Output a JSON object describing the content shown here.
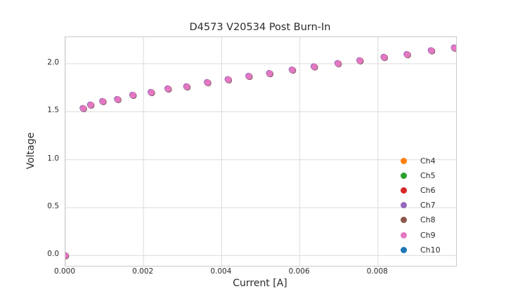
{
  "chart_data": {
    "type": "scatter",
    "title": "D4573 V20534 Post Burn-In",
    "xlabel": "Current [A]",
    "ylabel": "Voltage",
    "xlim": [
      0,
      0.01
    ],
    "ylim": [
      -0.106,
      2.277
    ],
    "grid": true,
    "legend_position": "lower right",
    "xticks": {
      "values": [
        0,
        0.002,
        0.004,
        0.006,
        0.008
      ],
      "labels": [
        "0.000",
        "0.002",
        "0.004",
        "0.006",
        "0.008"
      ]
    },
    "yticks": {
      "values": [
        0.0,
        0.5,
        1.0,
        1.5,
        2.0
      ],
      "labels": [
        "0.0",
        "0.5",
        "1.0",
        "1.5",
        "2.0"
      ]
    },
    "x": [
      0.0,
      0.00046,
      0.00065,
      0.00096,
      0.00134,
      0.00173,
      0.0022,
      0.00263,
      0.00311,
      0.00364,
      0.00417,
      0.0047,
      0.00523,
      0.00581,
      0.00637,
      0.00698,
      0.00754,
      0.00816,
      0.00875,
      0.00937,
      0.00996
    ],
    "y": [
      0.0,
      1.533,
      1.569,
      1.606,
      1.627,
      1.671,
      1.7,
      1.737,
      1.759,
      1.803,
      1.833,
      1.868,
      1.897,
      1.934,
      1.967,
      2.001,
      2.031,
      2.066,
      2.095,
      2.135,
      2.163
    ],
    "series": [
      {
        "name": "Ch4",
        "color": "#ff7f0e"
      },
      {
        "name": "Ch5",
        "color": "#2ca02c"
      },
      {
        "name": "Ch6",
        "color": "#d62728"
      },
      {
        "name": "Ch7",
        "color": "#9467bd"
      },
      {
        "name": "Ch8",
        "color": "#8c564b"
      },
      {
        "name": "Ch9",
        "color": "#e377c2"
      },
      {
        "name": "Ch10",
        "color": "#1f77b4"
      }
    ],
    "series_overlap": true,
    "top_series": "Ch9",
    "grid_color": "#dcdcdc",
    "spine_color": "#cbcbcb",
    "marker_radius_px": 4.5
  }
}
